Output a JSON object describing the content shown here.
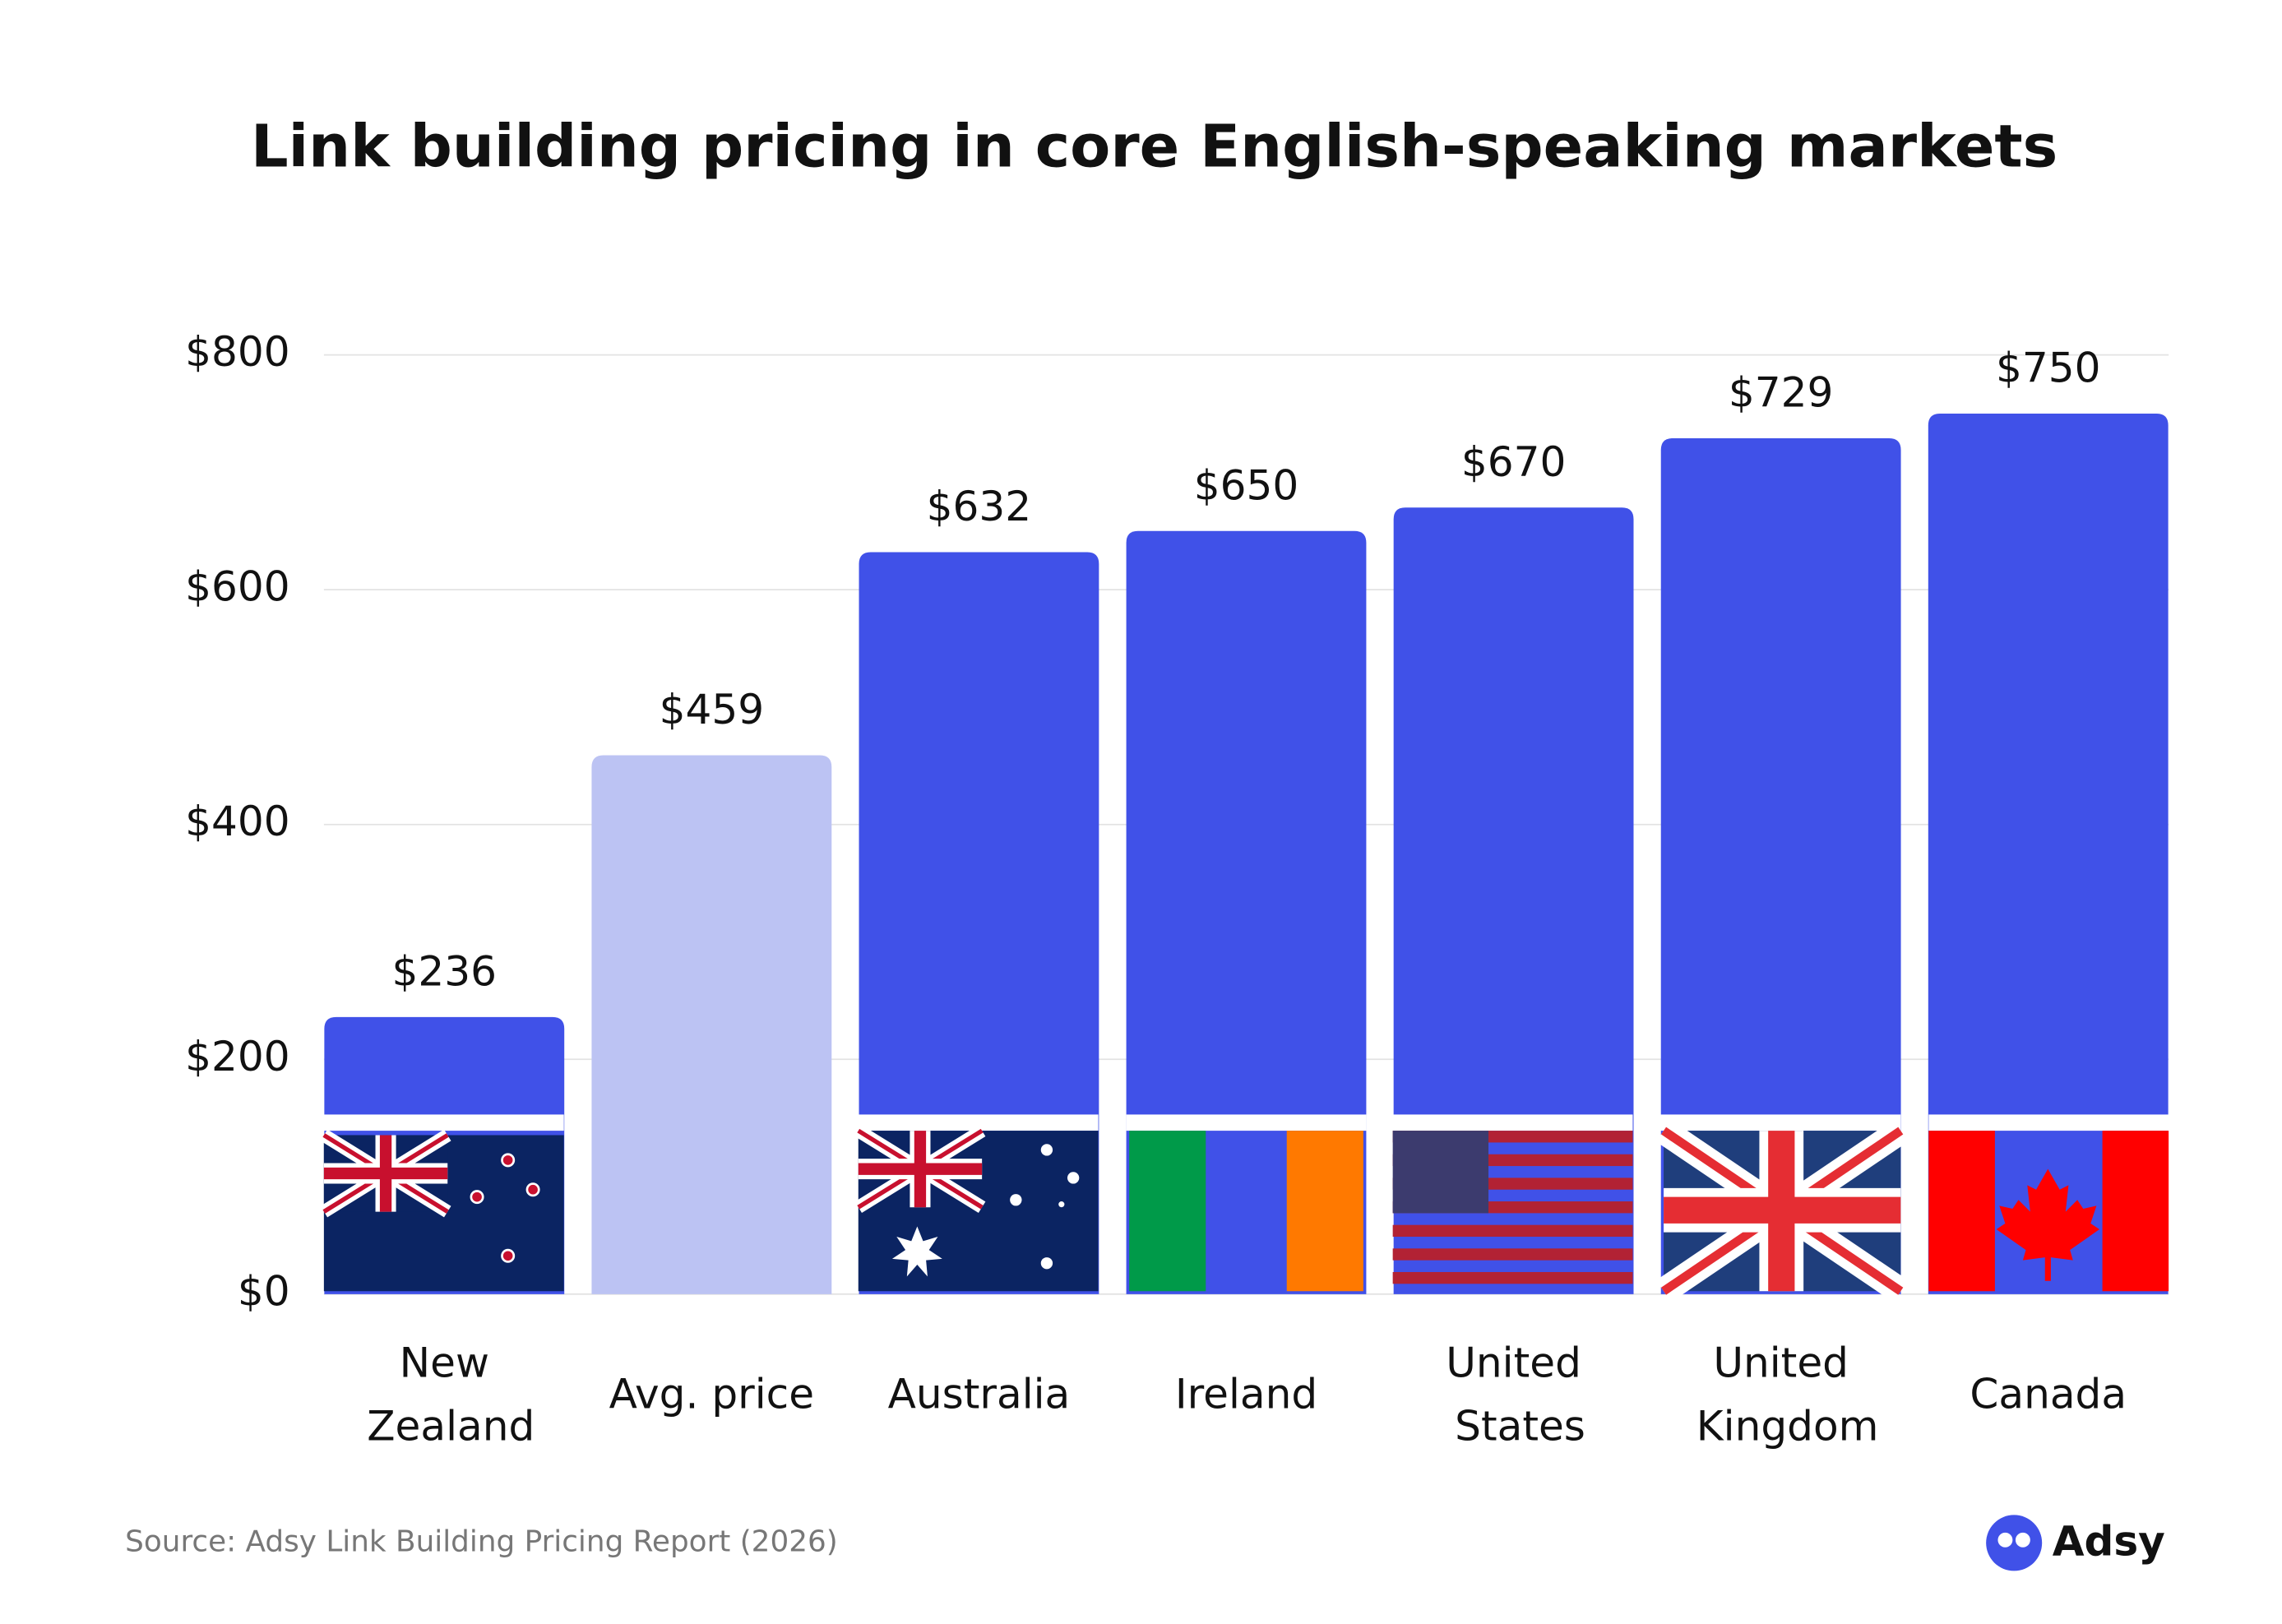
{
  "chart_data": {
    "type": "bar",
    "title": "Link building pricing in core English-speaking markets",
    "categories": [
      "New Zealand",
      "Avg. price",
      "Australia",
      "Ireland",
      "United States",
      "United Kingdom",
      "Canada"
    ],
    "values": [
      236,
      459,
      632,
      650,
      670,
      729,
      750
    ],
    "value_labels": [
      "$236",
      "$459",
      "$632",
      "$650",
      "$670",
      "$729",
      "$750"
    ],
    "colors": [
      "#4051e8",
      "#bcc3f3",
      "#4051e8",
      "#4051e8",
      "#4051e8",
      "#4051e8",
      "#4051e8"
    ],
    "ylim": [
      0,
      800
    ],
    "yticks": [
      {
        "value": 0,
        "label": "$0"
      },
      {
        "value": 200,
        "label": "$200"
      },
      {
        "value": 400,
        "label": "$400"
      },
      {
        "value": 600,
        "label": "$600"
      },
      {
        "value": 800,
        "label": "$800"
      }
    ],
    "grid": true,
    "source": "Source: Adsy Link Building Pricing Report (2026)",
    "brand": "Adsy"
  }
}
